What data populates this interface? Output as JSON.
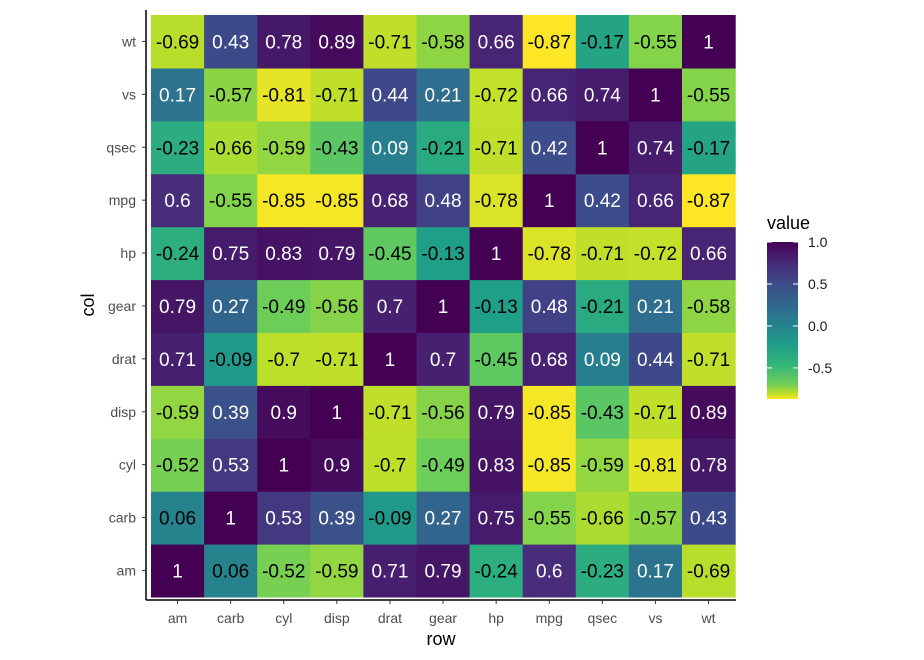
{
  "chart_data": {
    "type": "heatmap",
    "xlabel": "row",
    "ylabel": "col",
    "x_categories": [
      "am",
      "carb",
      "cyl",
      "disp",
      "drat",
      "gear",
      "hp",
      "mpg",
      "qsec",
      "vs",
      "wt"
    ],
    "y_categories": [
      "am",
      "carb",
      "cyl",
      "disp",
      "drat",
      "gear",
      "hp",
      "mpg",
      "qsec",
      "vs",
      "wt"
    ],
    "values": [
      [
        1,
        0.06,
        -0.52,
        -0.59,
        0.71,
        0.79,
        -0.24,
        0.6,
        -0.23,
        0.17,
        -0.69
      ],
      [
        0.06,
        1,
        0.53,
        0.39,
        -0.09,
        0.27,
        0.75,
        -0.55,
        -0.66,
        -0.57,
        0.43
      ],
      [
        -0.52,
        0.53,
        1,
        0.9,
        -0.7,
        -0.49,
        0.83,
        -0.85,
        -0.59,
        -0.81,
        0.78
      ],
      [
        -0.59,
        0.39,
        0.9,
        1,
        -0.71,
        -0.56,
        0.79,
        -0.85,
        -0.43,
        -0.71,
        0.89
      ],
      [
        0.71,
        -0.09,
        -0.7,
        -0.71,
        1,
        0.7,
        -0.45,
        0.68,
        0.09,
        0.44,
        -0.71
      ],
      [
        0.79,
        0.27,
        -0.49,
        -0.56,
        0.7,
        1,
        -0.13,
        0.48,
        -0.21,
        0.21,
        -0.58
      ],
      [
        -0.24,
        0.75,
        0.83,
        0.79,
        -0.45,
        -0.13,
        1,
        -0.78,
        -0.71,
        -0.72,
        0.66
      ],
      [
        0.6,
        -0.55,
        -0.85,
        -0.85,
        0.68,
        0.48,
        -0.78,
        1,
        0.42,
        0.66,
        -0.87
      ],
      [
        -0.23,
        -0.66,
        -0.59,
        -0.43,
        0.09,
        -0.21,
        -0.71,
        0.42,
        1,
        0.74,
        -0.17
      ],
      [
        0.17,
        -0.57,
        -0.81,
        -0.71,
        0.44,
        0.21,
        -0.72,
        0.66,
        0.74,
        1,
        -0.55
      ],
      [
        -0.69,
        0.43,
        0.78,
        0.89,
        -0.71,
        -0.58,
        0.66,
        -0.87,
        -0.17,
        -0.55,
        1
      ]
    ],
    "legend": {
      "title": "value",
      "ticks": [
        1.0,
        0.5,
        0.0,
        -0.5
      ],
      "tick_labels": [
        "1.0",
        "0.5",
        "0.0",
        "-0.5"
      ],
      "placement": "right"
    },
    "value_range": [
      -0.87,
      1
    ],
    "colormap": "viridis (reversed: high = dark purple, low = yellow)",
    "colors": {
      "high": "#440154",
      "mid": "#21908C",
      "low": "#FDE725",
      "text_on_dark": "#ffffff",
      "text_on_light": "#000000"
    },
    "grid": false
  }
}
